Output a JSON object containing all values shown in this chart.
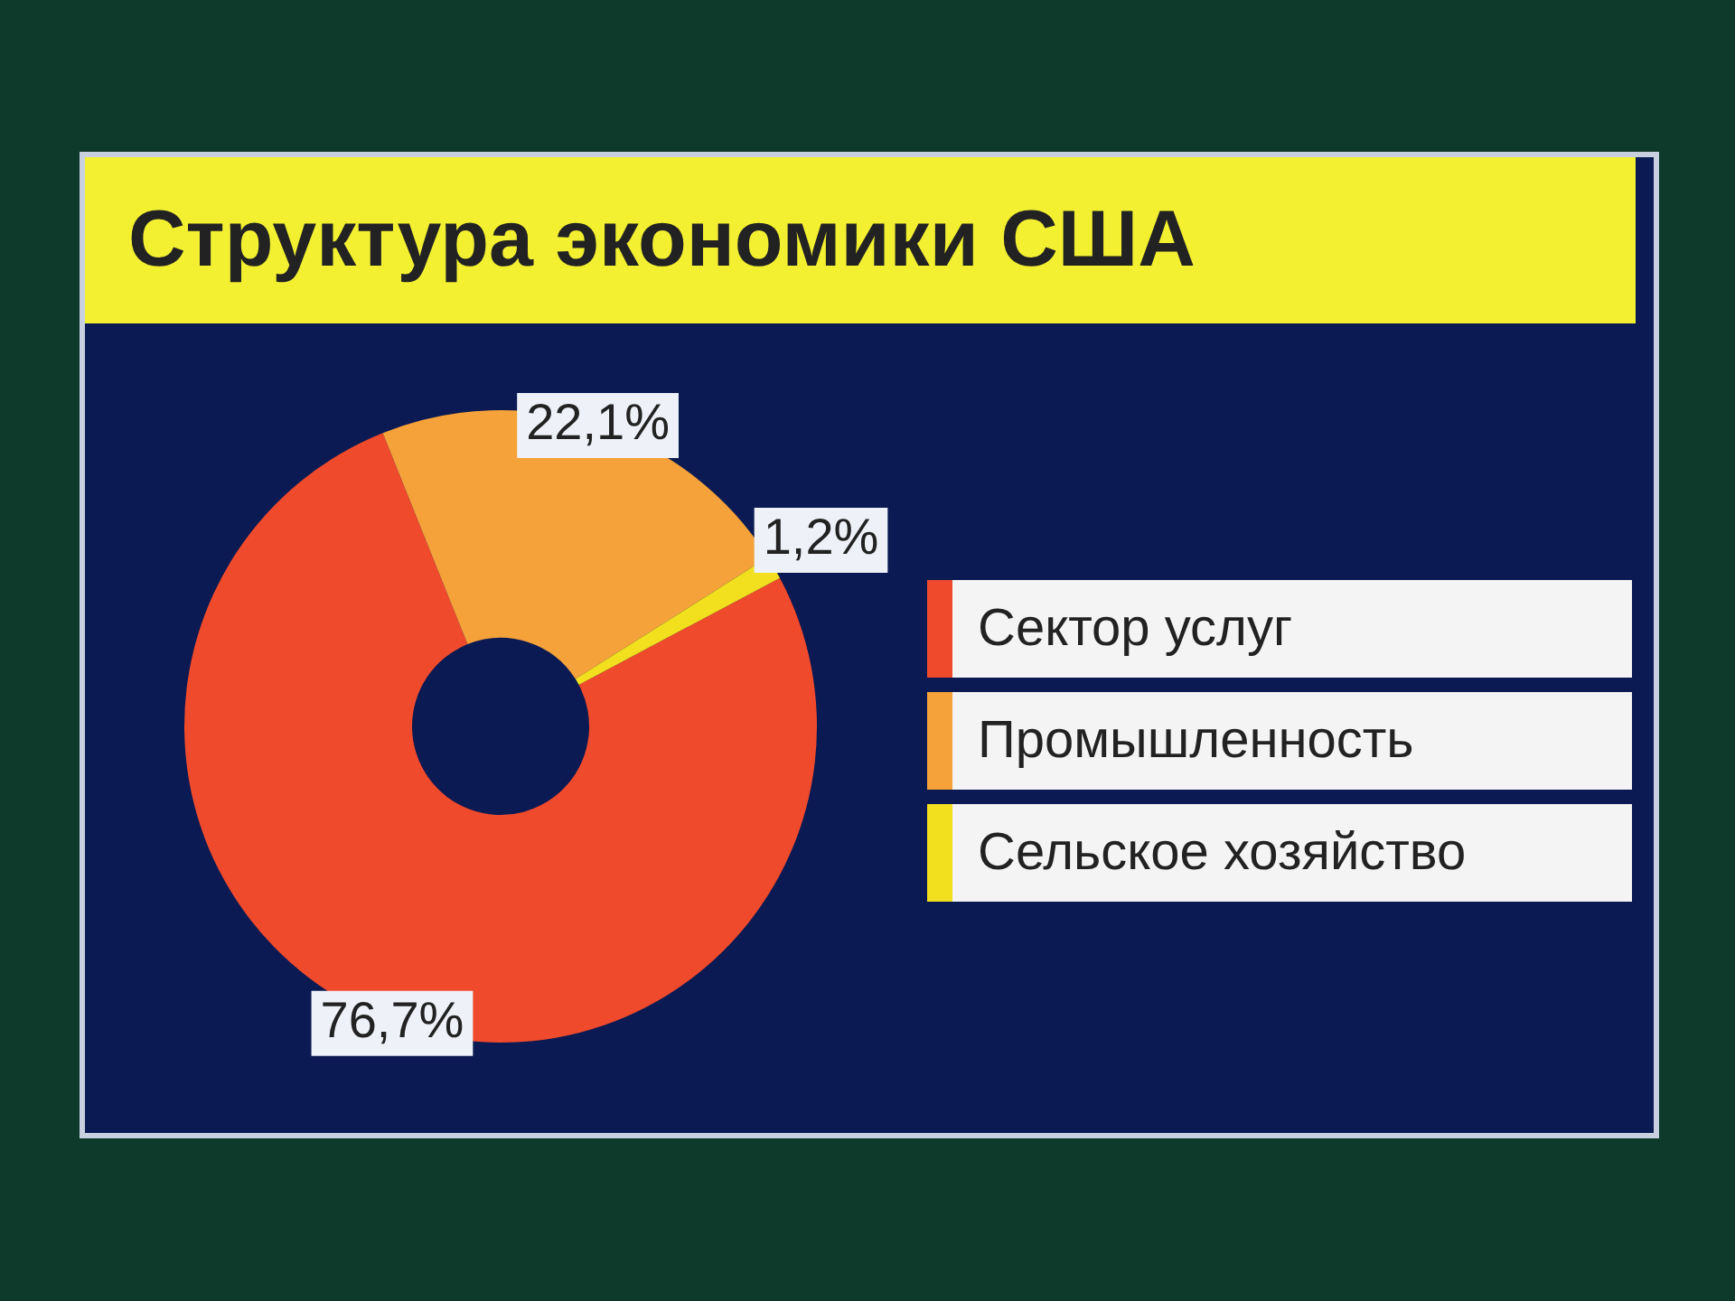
{
  "chart_data": {
    "type": "donut",
    "title": "Структура экономики США",
    "categories": [
      "Сектор услуг",
      "Промышленность",
      "Сельское хозяйство"
    ],
    "values": [
      76.7,
      22.1,
      1.2
    ],
    "colors": [
      "#f04a2c",
      "#f5a23a",
      "#f2e01e"
    ],
    "value_labels": [
      "76,7%",
      "22,1%",
      "1,2%"
    ],
    "legend": "right"
  }
}
